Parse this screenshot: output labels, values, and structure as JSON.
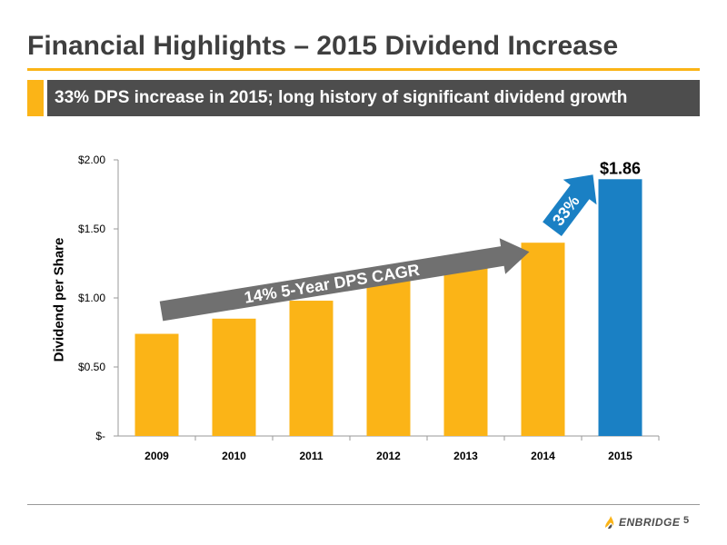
{
  "header": {
    "title": "Financial Highlights – 2015 Dividend Increase",
    "subtitle": "33% DPS increase in 2015; long history of significant dividend growth"
  },
  "chart_data": {
    "type": "bar",
    "categories": [
      "2009",
      "2010",
      "2011",
      "2012",
      "2013",
      "2014",
      "2015"
    ],
    "values": [
      0.74,
      0.85,
      0.98,
      1.13,
      1.26,
      1.4,
      1.86
    ],
    "ylabel": "Dividend per Share",
    "ylim": [
      0,
      2.0
    ],
    "yticks": [
      {
        "value": 0,
        "label": "$-"
      },
      {
        "value": 0.5,
        "label": "$0.50"
      },
      {
        "value": 1.0,
        "label": "$1.00"
      },
      {
        "value": 1.5,
        "label": "$1.50"
      },
      {
        "value": 2.0,
        "label": "$2.00"
      }
    ],
    "bar_colors": [
      "#fbb417",
      "#fbb417",
      "#fbb417",
      "#fbb417",
      "#fbb417",
      "#fbb417",
      "#1a80c4"
    ],
    "grid": false,
    "data_labels": [
      {
        "category": "2015",
        "text": "$1.86"
      }
    ],
    "annotations": [
      {
        "text": "14% 5-Year DPS CAGR",
        "color": "#707070",
        "from": "2009",
        "to": "2014"
      },
      {
        "text": "33%",
        "color": "#1a80c4",
        "from": "2014",
        "to": "2015"
      }
    ]
  },
  "footer": {
    "logo_text": "ENBRIDGE",
    "page_number": "5"
  },
  "colors": {
    "accent": "#fbb417",
    "banner": "#4d4d4d",
    "highlight": "#1a80c4",
    "arrow": "#707070",
    "title": "#3f3f3f"
  }
}
